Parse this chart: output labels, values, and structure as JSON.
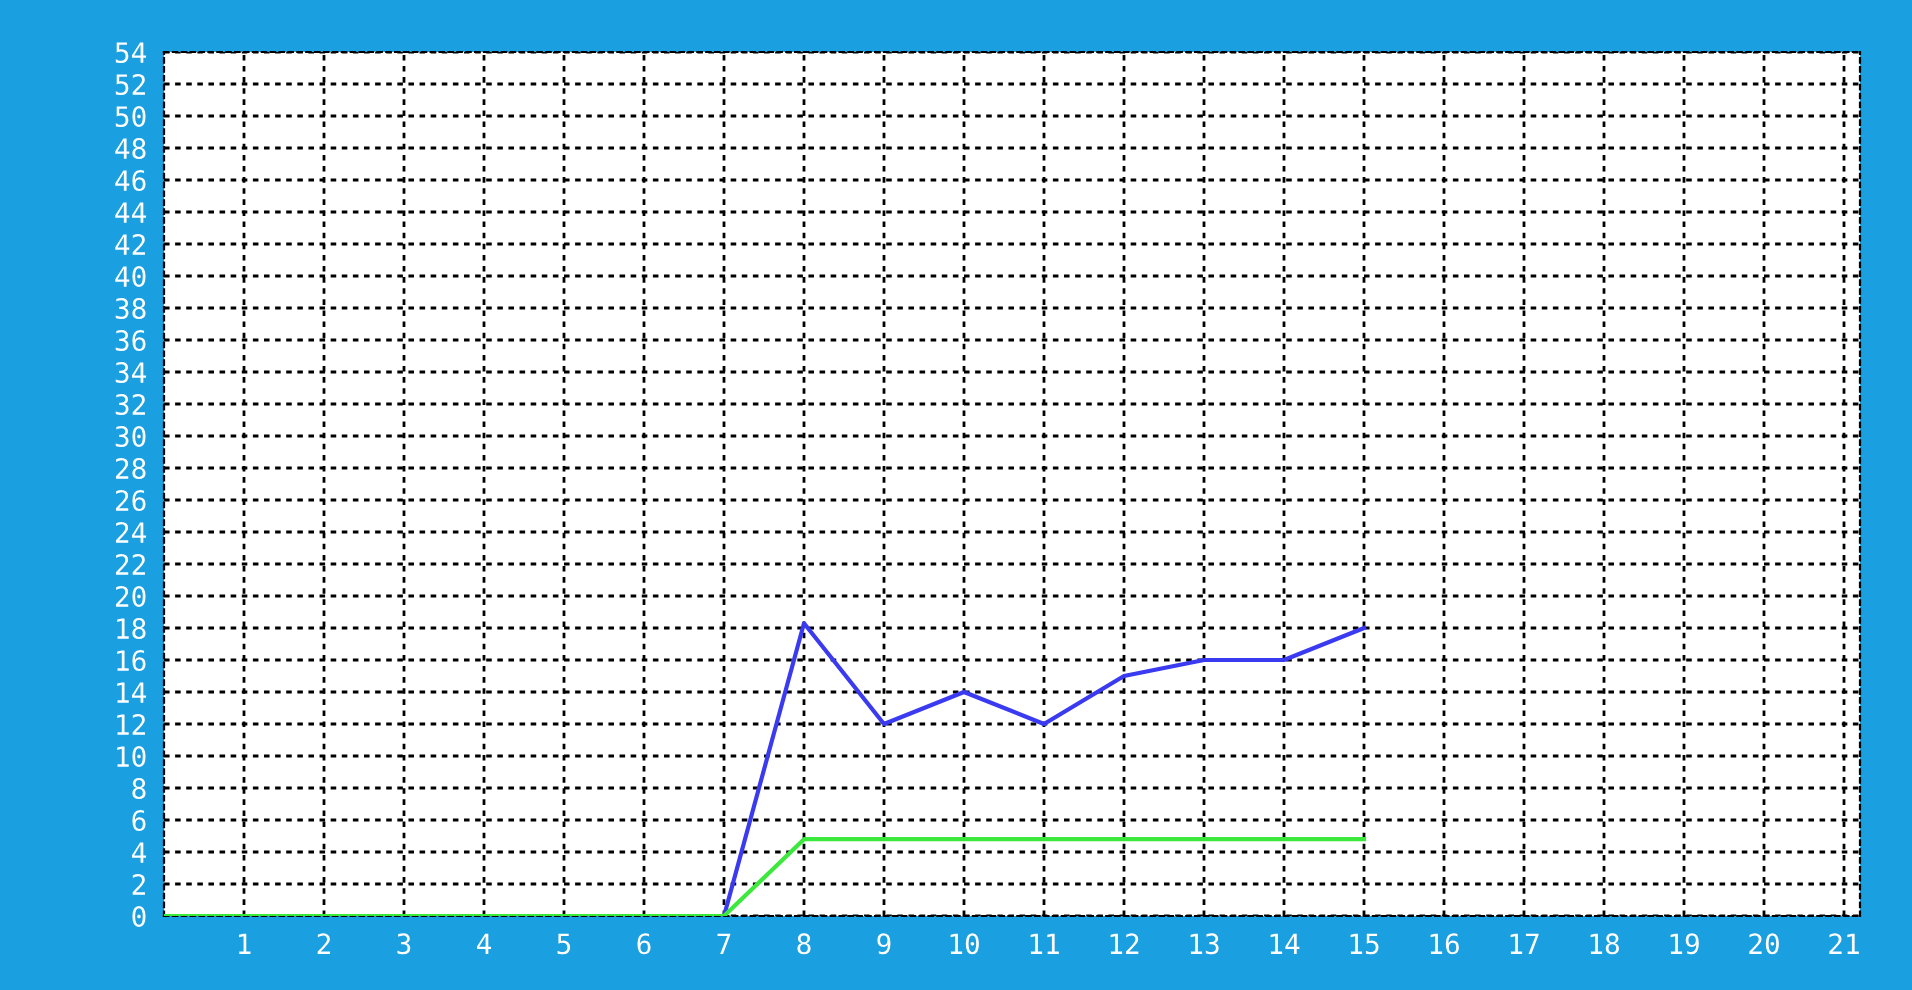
{
  "chart_data": {
    "type": "line",
    "x": [
      0,
      1,
      2,
      3,
      4,
      5,
      6,
      7,
      8,
      9,
      10,
      11,
      12,
      13,
      14,
      15
    ],
    "series": [
      {
        "color": "#3a3af0",
        "values": [
          null,
          null,
          null,
          null,
          null,
          null,
          null,
          0,
          18.3,
          12,
          14,
          12,
          15,
          16,
          16,
          18
        ]
      },
      {
        "color": "#3ce83c",
        "values": [
          0,
          0,
          0,
          0,
          0,
          0,
          0,
          0,
          4.8,
          4.8,
          4.8,
          4.8,
          4.8,
          4.8,
          4.8,
          4.8
        ]
      }
    ],
    "xlim": [
      0,
      21.2
    ],
    "xticks": [
      1,
      2,
      3,
      4,
      5,
      6,
      7,
      8,
      9,
      10,
      11,
      12,
      13,
      14,
      15,
      16,
      17,
      18,
      19,
      20,
      21
    ],
    "ylim": [
      0,
      54
    ],
    "yticks": [
      0,
      2,
      4,
      6,
      8,
      10,
      12,
      14,
      16,
      18,
      20,
      22,
      24,
      26,
      28,
      30,
      32,
      34,
      36,
      38,
      40,
      42,
      44,
      46,
      48,
      50,
      52,
      54
    ],
    "grid": true,
    "marker": "none",
    "line_style": "solid"
  }
}
